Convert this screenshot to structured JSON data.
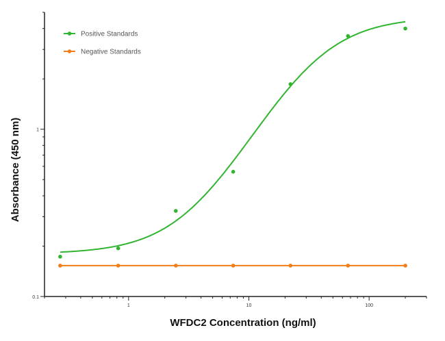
{
  "chart_data": {
    "type": "scatter",
    "title": "",
    "xlabel": "WFDC2 Concentration (ng/ml)",
    "ylabel": "Absorbance (450 nm)",
    "x_scale": "log",
    "y_scale": "log",
    "xlim": [
      0.2,
      300
    ],
    "ylim": [
      0.1,
      5
    ],
    "x_ticks": [
      {
        "value": 1,
        "label": "1"
      },
      {
        "value": 10,
        "label": "10"
      },
      {
        "value": 100,
        "label": "100"
      }
    ],
    "y_ticks": [
      {
        "value": 0.1,
        "label": "0.1"
      },
      {
        "value": 1,
        "label": "1"
      }
    ],
    "grid": false,
    "legend_position": "top-left",
    "series": [
      {
        "name": "Positive Standards",
        "color": "#2fb52f",
        "x": [
          0.27,
          0.82,
          2.47,
          7.41,
          22.2,
          66.7,
          200
        ],
        "y": [
          0.173,
          0.194,
          0.325,
          0.557,
          1.86,
          3.61,
          4.0
        ],
        "line": "4PL fit",
        "fit": {
          "bottom": 0.18,
          "top": 4.7,
          "ec50": 33,
          "hill": 1.45
        }
      },
      {
        "name": "Negative Standards",
        "color": "#f07d1a",
        "x": [
          0.27,
          0.82,
          2.47,
          7.41,
          22.2,
          66.7,
          200
        ],
        "y": [
          0.153,
          0.153,
          0.153,
          0.153,
          0.153,
          0.153,
          0.153
        ],
        "line": "connected"
      }
    ]
  }
}
